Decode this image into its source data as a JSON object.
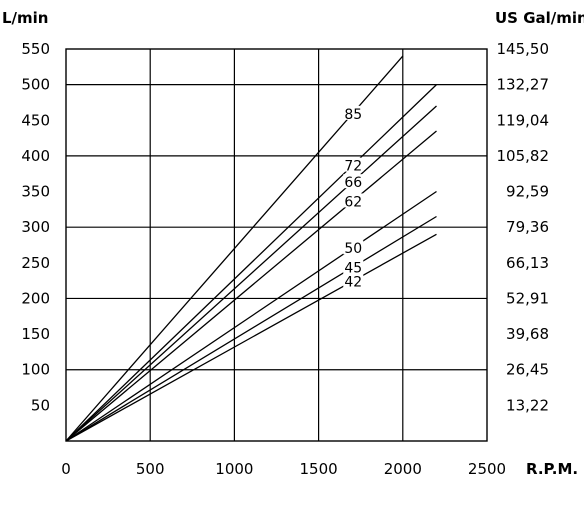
{
  "chart_data": {
    "type": "line",
    "left_unit": "L/min",
    "right_unit": "US Gal/min",
    "x_unit": "R.P.M.",
    "xlim": [
      0,
      2500
    ],
    "ylim": [
      0,
      550
    ],
    "grid": true,
    "x_ticks": [
      "0",
      "500",
      "1000",
      "1500",
      "2000",
      "2500"
    ],
    "y_ticks": [
      "50",
      "100",
      "150",
      "200",
      "250",
      "300",
      "350",
      "400",
      "450",
      "500",
      "550"
    ],
    "y2_ticks": [
      "13,22",
      "26,45",
      "39,68",
      "52,91",
      "66,13",
      "79,36",
      "92,59",
      "105,82",
      "119,04",
      "132,27",
      "145,50"
    ],
    "series": [
      {
        "name": "85",
        "x": [
          0,
          2000
        ],
        "y": [
          0,
          540
        ]
      },
      {
        "name": "72",
        "x": [
          0,
          2200
        ],
        "y": [
          0,
          500
        ]
      },
      {
        "name": "66",
        "x": [
          0,
          2200
        ],
        "y": [
          0,
          470
        ]
      },
      {
        "name": "62",
        "x": [
          0,
          2200
        ],
        "y": [
          0,
          435
        ]
      },
      {
        "name": "50",
        "x": [
          0,
          2200
        ],
        "y": [
          0,
          350
        ]
      },
      {
        "name": "45",
        "x": [
          0,
          2200
        ],
        "y": [
          0,
          315
        ]
      },
      {
        "name": "42",
        "x": [
          0,
          2200
        ],
        "y": [
          0,
          290
        ]
      }
    ]
  }
}
